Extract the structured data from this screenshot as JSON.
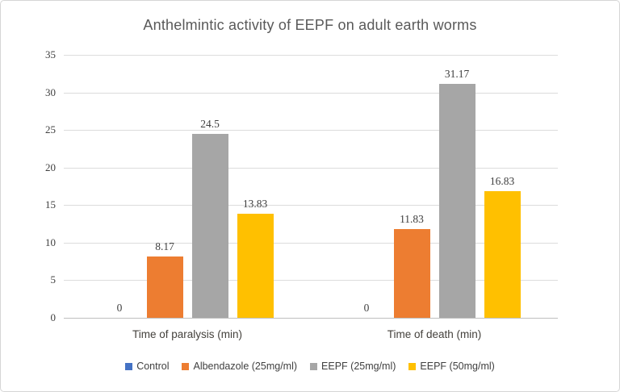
{
  "chart_data": {
    "type": "bar",
    "title": "Anthelmintic activity of EEPF on adult earth worms",
    "categories": [
      "Time of paralysis (min)",
      "Time of death (min)"
    ],
    "series": [
      {
        "name": "Control",
        "color": "#4472C4",
        "values": [
          0,
          0
        ],
        "data_labels": [
          "0",
          "0"
        ]
      },
      {
        "name": "Albendazole (25mg/ml)",
        "color": "#ED7D31",
        "values": [
          8.17,
          11.83
        ],
        "data_labels": [
          "8.17",
          "11.83"
        ]
      },
      {
        "name": "EEPF (25mg/ml)",
        "color": "#A6A6A6",
        "values": [
          24.5,
          31.17
        ],
        "data_labels": [
          "24.5",
          "31.17"
        ]
      },
      {
        "name": "EEPF (50mg/ml)",
        "color": "#FFC000",
        "values": [
          13.83,
          16.83
        ],
        "data_labels": [
          "13.83",
          "16.83"
        ]
      }
    ],
    "y_axis": {
      "min": 0,
      "max": 35,
      "step": 5,
      "tick_labels": [
        "0",
        "5",
        "10",
        "15",
        "20",
        "25",
        "30",
        "35"
      ]
    },
    "grid": true,
    "legend_position": "bottom",
    "colors": {
      "gridline": "#DCDCDC",
      "axis_line": "#BFBFBF",
      "title_text": "#595959",
      "number_text": "#404040"
    }
  }
}
